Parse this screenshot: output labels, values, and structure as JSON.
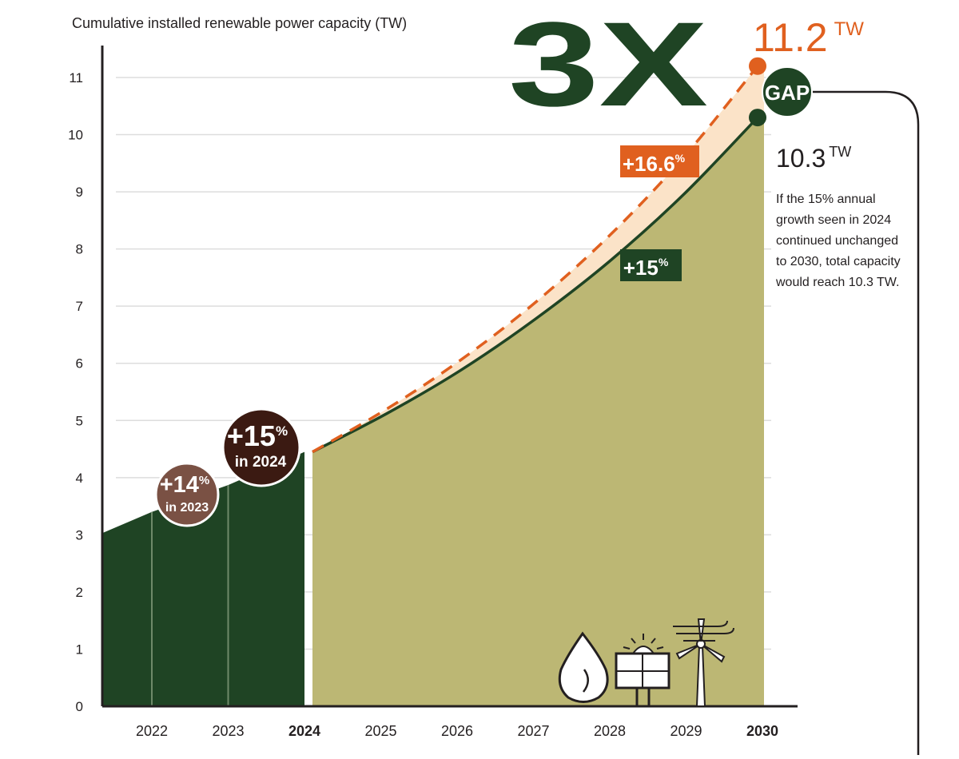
{
  "colors": {
    "dark_green": "#1f4424",
    "olive_fill": "#bcb774",
    "orange": "#e0601f",
    "peach": "#fbe3c8",
    "brown_circle": "#7a5144",
    "dark_brown_circle": "#3b1a12",
    "grid": "#dddddd",
    "text": "#231f20"
  },
  "chart_data": {
    "type": "area",
    "title": "Cumulative installed renewable power capacity (TW)",
    "ylim": [
      0,
      11
    ],
    "yticks": [
      "0",
      "1",
      "2",
      "3",
      "4",
      "5",
      "6",
      "7",
      "8",
      "9",
      "10",
      "11"
    ],
    "xlabels": [
      "2022",
      "2023",
      "2024",
      "2025",
      "2026",
      "2027",
      "2028",
      "2029",
      "2030"
    ],
    "bold_xlabels": [
      "2024",
      "2030"
    ],
    "historical": {
      "x": [
        2021.4,
        2022,
        2023,
        2024
      ],
      "y": [
        3.03,
        3.4,
        3.87,
        4.45
      ]
    },
    "projection_15": {
      "name": "+15%",
      "x": [
        2024,
        2025,
        2026,
        2027,
        2028,
        2029,
        2030
      ],
      "y": [
        4.45,
        5.12,
        5.88,
        6.77,
        7.78,
        8.95,
        10.3
      ]
    },
    "projection_16_6": {
      "name": "+16.6%",
      "x": [
        2024,
        2025,
        2026,
        2027,
        2028,
        2029,
        2030
      ],
      "y": [
        4.45,
        5.2,
        6.06,
        7.06,
        8.23,
        9.6,
        11.2
      ]
    },
    "bubbles": [
      {
        "pct": "+14",
        "sup": "%",
        "caption": "in 2023"
      },
      {
        "pct": "+15",
        "sup": "%",
        "caption": "in 2024"
      }
    ],
    "curve_labels": {
      "orange": {
        "value": "+16.6",
        "sup": "%"
      },
      "green": {
        "value": "+15",
        "sup": "%"
      }
    },
    "end_labels": {
      "top": {
        "value": "11.2",
        "unit": "TW"
      },
      "bottom": {
        "value": "10.3",
        "unit": "TW"
      },
      "gap": "GAP"
    },
    "headline": "3X",
    "annotation": "If the 15% annual growth seen in 2024 continued unchanged to 2030, total capacity would reach 10.3 TW."
  }
}
